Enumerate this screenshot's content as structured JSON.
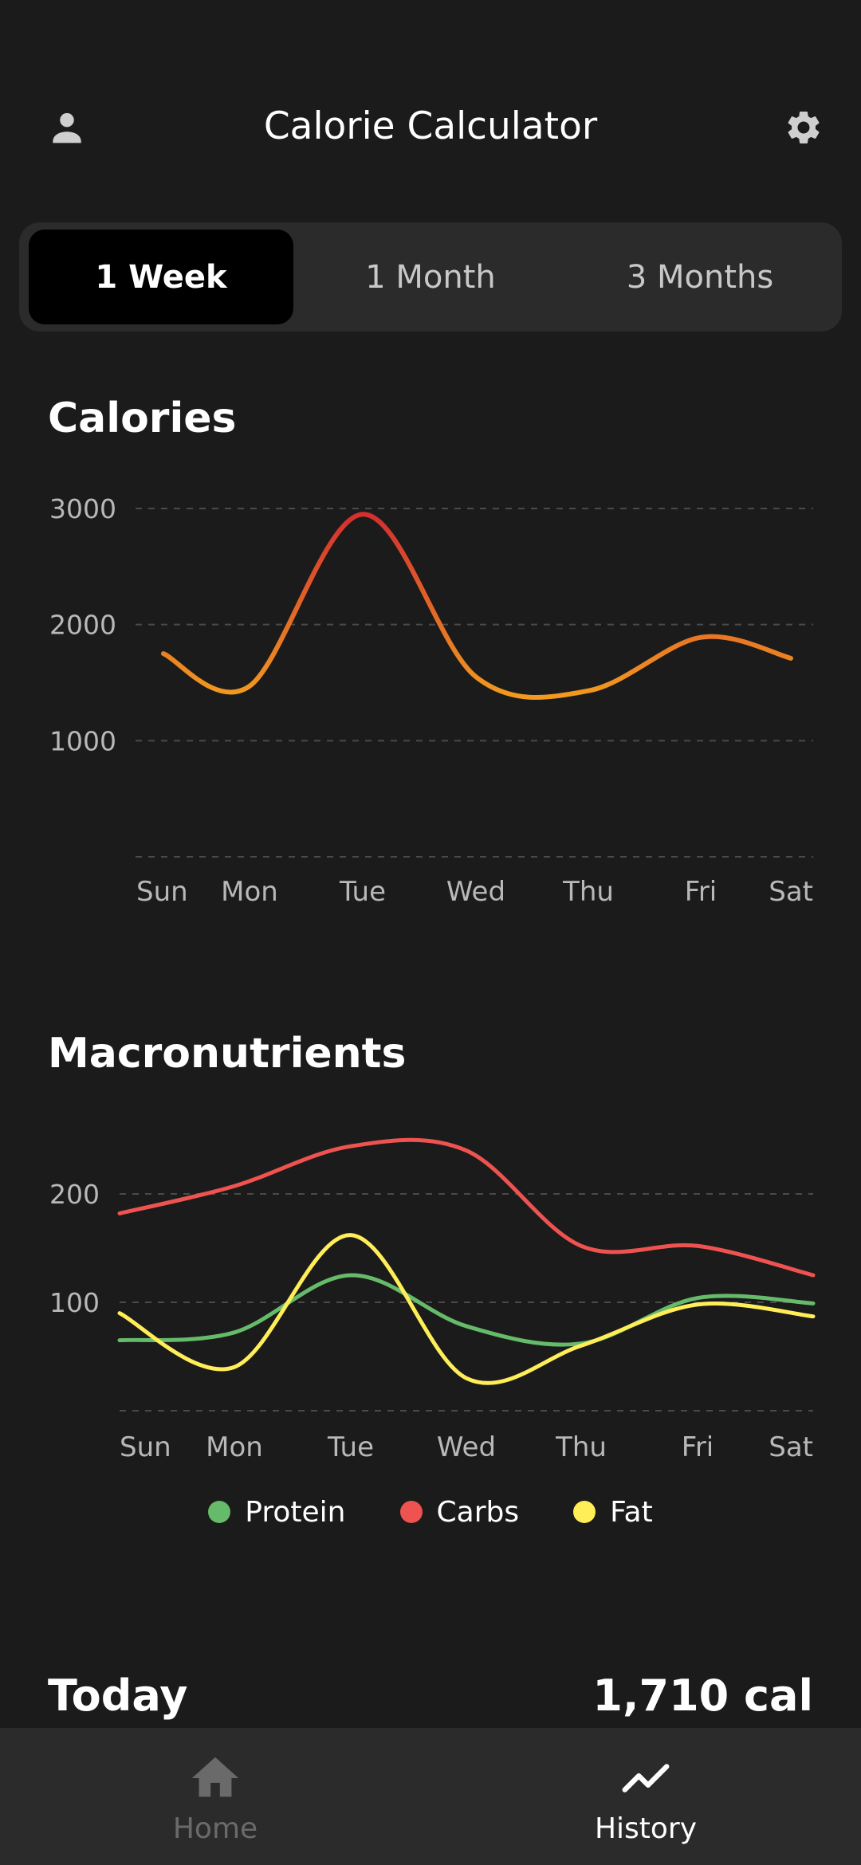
{
  "header": {
    "title": "Calorie Calculator",
    "left_icon": "person-icon",
    "right_icon": "gear-icon"
  },
  "range_tabs": [
    {
      "label": "1 Week",
      "active": true
    },
    {
      "label": "1 Month",
      "active": false
    },
    {
      "label": "3 Months",
      "active": false
    }
  ],
  "calories": {
    "title": "Calories",
    "chart_data": {
      "type": "line",
      "title": "Calories",
      "categories": [
        "Sun",
        "Mon",
        "Tue",
        "Wed",
        "Thu",
        "Fri",
        "Sat"
      ],
      "y_ticks": [
        "3000",
        "2000",
        "1000"
      ],
      "ylim": [
        0,
        3000
      ],
      "grid": true,
      "series": [
        {
          "values": [
            1750,
            1470,
            2950,
            1550,
            1430,
            1890,
            1710
          ]
        }
      ],
      "colors": {
        "low": "#f29a1f",
        "high": "#d32f2f"
      }
    }
  },
  "macros": {
    "title": "Macronutrients",
    "chart_data": {
      "type": "line",
      "title": "Macronutrients",
      "categories": [
        "Sun",
        "Mon",
        "Tue",
        "Wed",
        "Thu",
        "Fri",
        "Sat"
      ],
      "y_ticks": [
        "200",
        "100"
      ],
      "ylim": [
        0,
        250
      ],
      "grid": true,
      "series": [
        {
          "name": "Protein",
          "color": "#66bb6a",
          "values": [
            65,
            72,
            125,
            78,
            62,
            104,
            99
          ]
        },
        {
          "name": "Carbs",
          "color": "#ef5350",
          "values": [
            182,
            207,
            244,
            240,
            152,
            152,
            125
          ]
        },
        {
          "name": "Fat",
          "color": "#ffee58",
          "values": [
            90,
            40,
            162,
            30,
            60,
            98,
            87
          ]
        }
      ]
    }
  },
  "legend": [
    {
      "label": "Protein",
      "color": "#66bb6a"
    },
    {
      "label": "Carbs",
      "color": "#ef5350"
    },
    {
      "label": "Fat",
      "color": "#ffee58"
    }
  ],
  "today": {
    "label": "Today",
    "value": "1,710 cal"
  },
  "nav": {
    "home": {
      "label": "Home",
      "icon": "home-icon"
    },
    "history": {
      "label": "History",
      "icon": "trending-up-icon"
    }
  }
}
